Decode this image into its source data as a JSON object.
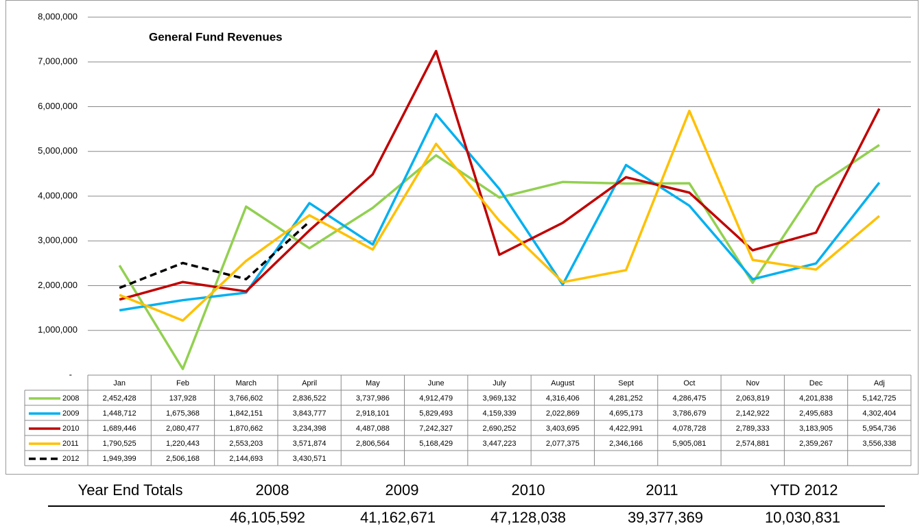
{
  "chart_data": {
    "type": "line",
    "title": "General Fund Revenues",
    "categories": [
      "Jan",
      "Feb",
      "March",
      "April",
      "May",
      "June",
      "July",
      "August",
      "Sept",
      "Oct",
      "Nov",
      "Dec",
      "Adj"
    ],
    "ylim": [
      0,
      8000000
    ],
    "yticks": [
      {
        "value": 0,
        "label": "-"
      },
      {
        "value": 1000000,
        "label": "1,000,000"
      },
      {
        "value": 2000000,
        "label": "2,000,000"
      },
      {
        "value": 3000000,
        "label": "3,000,000"
      },
      {
        "value": 4000000,
        "label": "4,000,000"
      },
      {
        "value": 5000000,
        "label": "5,000,000"
      },
      {
        "value": 6000000,
        "label": "6,000,000"
      },
      {
        "value": 7000000,
        "label": "7,000,000"
      },
      {
        "value": 8000000,
        "label": "8,000,000"
      }
    ],
    "grid": true,
    "series": [
      {
        "name": "2008",
        "color": "#92d050",
        "dashed": false,
        "values": [
          2452428,
          137928,
          3766602,
          2836522,
          3737986,
          4912479,
          3969132,
          4316406,
          4281252,
          4286475,
          2063819,
          4201838,
          5142725
        ],
        "value_labels": [
          "2,452,428",
          "137,928",
          "3,766,602",
          "2,836,522",
          "3,737,986",
          "4,912,479",
          "3,969,132",
          "4,316,406",
          "4,281,252",
          "4,286,475",
          "2,063,819",
          "4,201,838",
          "5,142,725"
        ]
      },
      {
        "name": "2009",
        "color": "#00b0f0",
        "dashed": false,
        "values": [
          1448712,
          1675368,
          1842151,
          3843777,
          2918101,
          5829493,
          4159339,
          2022869,
          4695173,
          3786679,
          2142922,
          2495683,
          4302404
        ],
        "value_labels": [
          "1,448,712",
          "1,675,368",
          "1,842,151",
          "3,843,777",
          "2,918,101",
          "5,829,493",
          "4,159,339",
          "2,022,869",
          "4,695,173",
          "3,786,679",
          "2,142,922",
          "2,495,683",
          "4,302,404"
        ]
      },
      {
        "name": "2010",
        "color": "#c00000",
        "dashed": false,
        "values": [
          1689446,
          2080477,
          1870662,
          3234398,
          4487088,
          7242327,
          2690252,
          3403695,
          4422991,
          4078728,
          2789333,
          3183905,
          5954736
        ],
        "value_labels": [
          "1,689,446",
          "2,080,477",
          "1,870,662",
          "3,234,398",
          "4,487,088",
          "7,242,327",
          "2,690,252",
          "3,403,695",
          "4,422,991",
          "4,078,728",
          "2,789,333",
          "3,183,905",
          "5,954,736"
        ]
      },
      {
        "name": "2011",
        "color": "#ffc000",
        "dashed": false,
        "values": [
          1790525,
          1220443,
          2553203,
          3571874,
          2806564,
          5168429,
          3447223,
          2077375,
          2346166,
          5905081,
          2574881,
          2359267,
          3556338
        ],
        "value_labels": [
          "1,790,525",
          "1,220,443",
          "2,553,203",
          "3,571,874",
          "2,806,564",
          "5,168,429",
          "3,447,223",
          "2,077,375",
          "2,346,166",
          "5,905,081",
          "2,574,881",
          "2,359,267",
          "3,556,338"
        ]
      },
      {
        "name": "2012",
        "color": "#000000",
        "dashed": true,
        "values": [
          1949399,
          2506168,
          2144693,
          3430571,
          null,
          null,
          null,
          null,
          null,
          null,
          null,
          null,
          null
        ],
        "value_labels": [
          "1,949,399",
          "2,506,168",
          "2,144,693",
          "3,430,571",
          null,
          null,
          null,
          null,
          null,
          null,
          null,
          null,
          null
        ]
      }
    ]
  },
  "totals": {
    "label": "Year End Totals",
    "headers": [
      "2008",
      "2009",
      "2010",
      "2011",
      "YTD 2012"
    ],
    "values": [
      "46,105,592",
      "41,162,671",
      "47,128,038",
      "39,377,369",
      "10,030,831"
    ]
  }
}
